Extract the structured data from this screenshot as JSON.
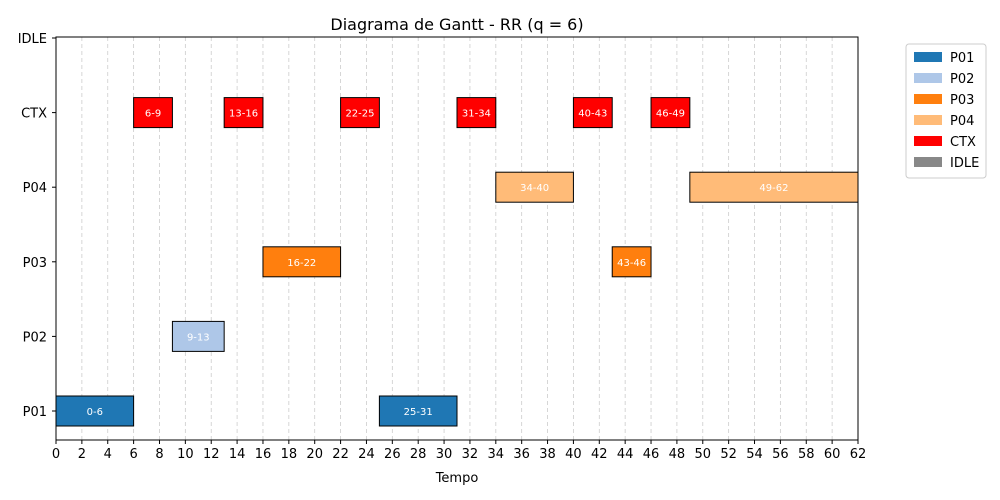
{
  "chart_data": {
    "type": "gantt",
    "title": "Diagrama de Gantt - RR (q = 6)",
    "xlabel": "Tempo",
    "ylabel": "",
    "xlim": [
      0,
      62
    ],
    "x_ticks": [
      0,
      2,
      4,
      6,
      8,
      10,
      12,
      14,
      16,
      18,
      20,
      22,
      24,
      26,
      28,
      30,
      32,
      34,
      36,
      38,
      40,
      42,
      44,
      46,
      48,
      50,
      52,
      54,
      56,
      58,
      60,
      62
    ],
    "rows": [
      "P01",
      "P02",
      "P03",
      "P04",
      "CTX",
      "IDLE"
    ],
    "grid": "vertical-dashed",
    "legend_position": "outside-right",
    "legend": [
      {
        "name": "P01",
        "color": "#1f77b4"
      },
      {
        "name": "P02",
        "color": "#aec7e8"
      },
      {
        "name": "P03",
        "color": "#ff7f0e"
      },
      {
        "name": "P04",
        "color": "#ffbb78"
      },
      {
        "name": "CTX",
        "color": "#ff0000"
      },
      {
        "name": "IDLE",
        "color": "#888888"
      }
    ],
    "segments": [
      {
        "row": "P01",
        "start": 0,
        "end": 6,
        "label": "0-6"
      },
      {
        "row": "CTX",
        "start": 6,
        "end": 9,
        "label": "6-9"
      },
      {
        "row": "P02",
        "start": 9,
        "end": 13,
        "label": "9-13"
      },
      {
        "row": "CTX",
        "start": 13,
        "end": 16,
        "label": "13-16"
      },
      {
        "row": "P03",
        "start": 16,
        "end": 22,
        "label": "16-22"
      },
      {
        "row": "CTX",
        "start": 22,
        "end": 25,
        "label": "22-25"
      },
      {
        "row": "P01",
        "start": 25,
        "end": 31,
        "label": "25-31"
      },
      {
        "row": "CTX",
        "start": 31,
        "end": 34,
        "label": "31-34"
      },
      {
        "row": "P04",
        "start": 34,
        "end": 40,
        "label": "34-40"
      },
      {
        "row": "CTX",
        "start": 40,
        "end": 43,
        "label": "40-43"
      },
      {
        "row": "P03",
        "start": 43,
        "end": 46,
        "label": "43-46"
      },
      {
        "row": "CTX",
        "start": 46,
        "end": 49,
        "label": "46-49"
      },
      {
        "row": "P04",
        "start": 49,
        "end": 62,
        "label": "49-62"
      }
    ]
  }
}
